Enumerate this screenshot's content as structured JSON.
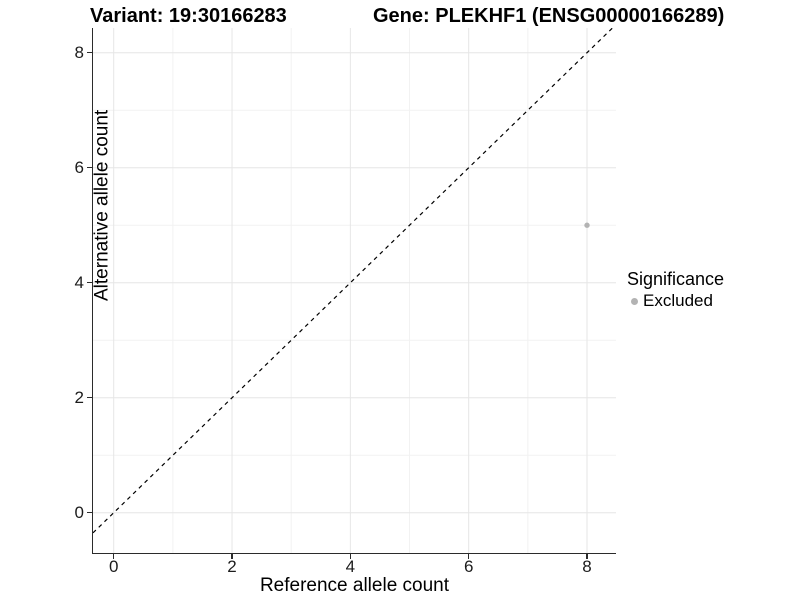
{
  "chart_data": {
    "type": "scatter",
    "title_left": "Variant: 19:30166283",
    "title_right": "Gene: PLEKHF1 (ENSG00000166289)",
    "xlabel": "Reference allele count",
    "ylabel": "Alternative allele count",
    "x_ticks": [
      0,
      2,
      4,
      6,
      8
    ],
    "y_ticks": [
      0,
      2,
      4,
      6,
      8
    ],
    "x_minor_gridlines": [
      1,
      3,
      5,
      7
    ],
    "y_minor_gridlines": [
      1,
      3,
      5,
      7
    ],
    "xlim": [
      -0.35,
      8.49
    ],
    "ylim": [
      -0.7,
      8.43
    ],
    "grid": "on",
    "points": [
      {
        "x": 8,
        "y": 5,
        "significance": "Excluded"
      }
    ],
    "reference_line": {
      "slope": 1,
      "intercept": 0,
      "style": "dashed",
      "color": "#000000"
    },
    "legend": {
      "title": "Significance",
      "position": "right",
      "items": [
        {
          "label": "Excluded",
          "color": "#b3b3b3"
        }
      ]
    },
    "colors": {
      "point": "#b3b3b3",
      "grid_major": "#e6e6e6",
      "grid_minor": "#f2f2f2",
      "axis": "#2b2b2b",
      "background": "#ffffff"
    }
  }
}
